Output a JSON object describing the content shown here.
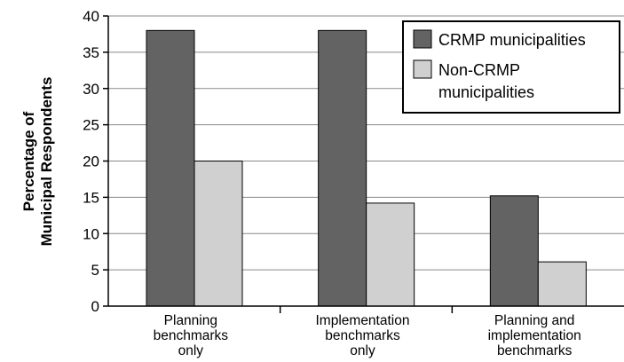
{
  "chart_data": {
    "type": "bar",
    "categories": [
      [
        "Planning",
        "benchmarks",
        "only"
      ],
      [
        "Implementation",
        "benchmarks",
        "only"
      ],
      [
        "Planning and",
        "implementation",
        "benchmarks"
      ]
    ],
    "series": [
      {
        "name": "CRMP municipalities",
        "values": [
          38,
          38,
          15.2
        ],
        "color": "#636363"
      },
      {
        "name": [
          "Non-CRMP",
          "municipalities"
        ],
        "values": [
          20,
          14.2,
          6.1
        ],
        "color": "#d0d0d0"
      }
    ],
    "ylabel": [
      "Percentage of",
      "Municipal Respondents"
    ],
    "ylim": [
      0,
      40
    ],
    "yticks": [
      0,
      5,
      10,
      15,
      20,
      25,
      30,
      35,
      40
    ],
    "grid": true,
    "legend_position": "top-right"
  }
}
